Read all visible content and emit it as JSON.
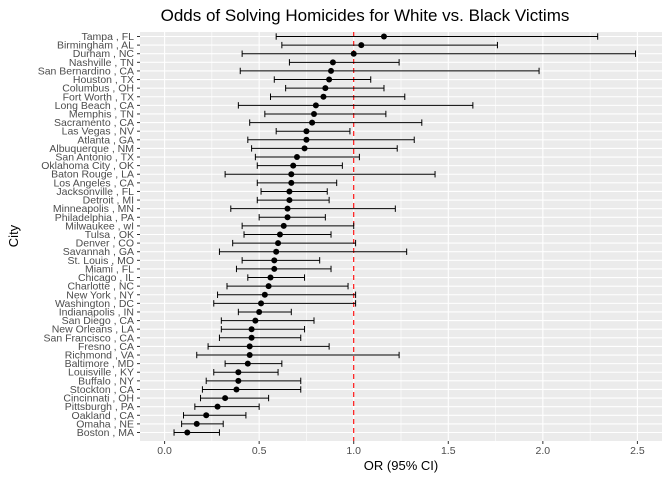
{
  "chart_data": {
    "type": "scatter",
    "title": "Odds of Solving Homicides for White vs. Black Victims",
    "xlabel": "OR (95% CI)",
    "ylabel": "City",
    "xlim": [
      -0.13,
      2.63
    ],
    "x_ticks": [
      0.0,
      0.5,
      1.0,
      1.5,
      2.0,
      2.5
    ],
    "x_tick_labels": [
      "0.0",
      "0.5",
      "1.0",
      "1.5",
      "2.0",
      "2.5"
    ],
    "reference_line": {
      "x": 1.0,
      "style": "dashed",
      "color": "#ff0000"
    },
    "grid": true,
    "background": "#ebebeb",
    "point_color": "#000000",
    "cities": [
      "Tampa , FL",
      "Birmingham , AL",
      "Durham , NC",
      "Nashville , TN",
      "San Bernardino , CA",
      "Houston , TX",
      "Columbus , OH",
      "Fort Worth , TX",
      "Long Beach , CA",
      "Memphis , TN",
      "Sacramento , CA",
      "Las Vegas , NV",
      "Atlanta , GA",
      "Albuquerque , NM",
      "San Antonio , TX",
      "Oklahoma City , OK",
      "Baton Rouge , LA",
      "Los Angeles , CA",
      "Jacksonville , FL",
      "Detroit , MI",
      "Minneapolis , MN",
      "Philadelphia , PA",
      "Milwaukee , wI",
      "Tulsa , OK",
      "Denver , CO",
      "Savannah , GA",
      "St. Louis , MO",
      "Miami , FL",
      "Chicago , IL",
      "Charlotte , NC",
      "New York , NY",
      "Washington , DC",
      "Indianapolis , IN",
      "San Diego , CA",
      "New Orleans , LA",
      "San Francisco , CA",
      "Fresno , CA",
      "Richmond , VA",
      "Baltimore , MD",
      "Louisville , KY",
      "Buffalo , NY",
      "Stockton , CA",
      "Cincinnati , OH",
      "Pittsburgh , PA",
      "Oakland , CA",
      "Omaha , NE",
      "Boston , MA"
    ],
    "or": [
      1.16,
      1.04,
      1.0,
      0.89,
      0.88,
      0.87,
      0.85,
      0.84,
      0.8,
      0.79,
      0.78,
      0.75,
      0.75,
      0.74,
      0.7,
      0.68,
      0.67,
      0.67,
      0.66,
      0.66,
      0.65,
      0.65,
      0.63,
      0.61,
      0.6,
      0.59,
      0.58,
      0.58,
      0.56,
      0.55,
      0.53,
      0.51,
      0.5,
      0.48,
      0.46,
      0.46,
      0.45,
      0.45,
      0.44,
      0.39,
      0.39,
      0.38,
      0.32,
      0.28,
      0.22,
      0.17,
      0.12
    ],
    "ci_low": [
      0.59,
      0.62,
      0.41,
      0.66,
      0.4,
      0.58,
      0.64,
      0.56,
      0.39,
      0.53,
      0.45,
      0.59,
      0.44,
      0.46,
      0.48,
      0.49,
      0.32,
      0.49,
      0.51,
      0.49,
      0.35,
      0.5,
      0.41,
      0.42,
      0.36,
      0.29,
      0.41,
      0.38,
      0.44,
      0.33,
      0.28,
      0.26,
      0.39,
      0.3,
      0.3,
      0.29,
      0.23,
      0.17,
      0.32,
      0.26,
      0.22,
      0.2,
      0.19,
      0.16,
      0.1,
      0.09,
      0.05
    ],
    "ci_high": [
      2.29,
      1.76,
      2.49,
      1.24,
      1.98,
      1.09,
      1.16,
      1.27,
      1.63,
      1.17,
      1.36,
      0.98,
      1.32,
      1.23,
      1.03,
      0.94,
      1.43,
      0.91,
      0.86,
      0.87,
      1.22,
      0.85,
      1.0,
      0.88,
      1.01,
      1.28,
      0.82,
      0.88,
      0.74,
      0.97,
      1.01,
      1.01,
      0.67,
      0.79,
      0.74,
      0.72,
      0.87,
      1.24,
      0.62,
      0.6,
      0.72,
      0.72,
      0.55,
      0.5,
      0.43,
      0.31,
      0.29
    ]
  }
}
